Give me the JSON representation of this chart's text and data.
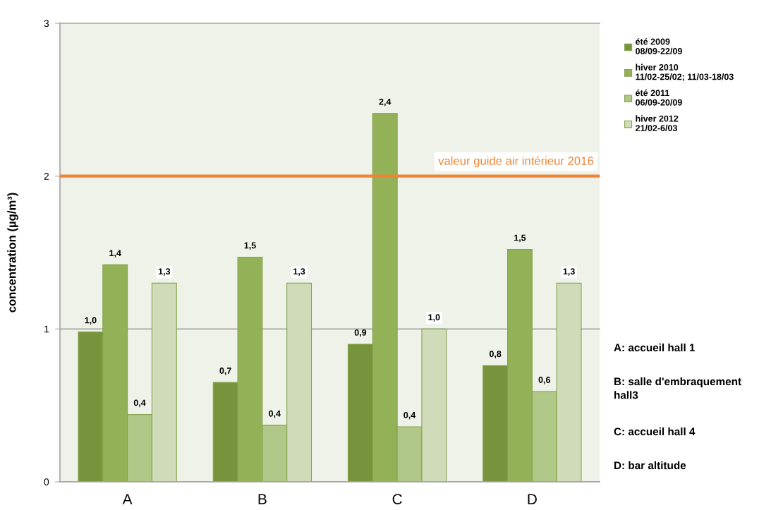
{
  "chart_data": {
    "type": "bar",
    "ylabel": "concentration (µg/m³)",
    "categories": [
      "A",
      "B",
      "C",
      "D"
    ],
    "series": [
      {
        "name": "été 2009\n08/09-22/09",
        "color": "#77933c",
        "values": [
          0.98,
          0.65,
          0.9,
          0.76
        ],
        "value_labels": [
          "1,0",
          "0,7",
          "0,9",
          "0,8"
        ]
      },
      {
        "name": "hiver 2010\n11/02-25/02; 11/03-18/03",
        "color": "#93b157",
        "values": [
          1.42,
          1.47,
          2.41,
          1.52
        ],
        "value_labels": [
          "1,4",
          "1,5",
          "2,4",
          "1,5"
        ]
      },
      {
        "name": "été 2011\n06/09-20/09",
        "color": "#afc887",
        "values": [
          0.44,
          0.37,
          0.36,
          0.59
        ],
        "value_labels": [
          "0,4",
          "0,4",
          "0,4",
          "0,6"
        ]
      },
      {
        "name": "hiver 2012\n21/02-6/03",
        "color": "#d0dcb9",
        "values": [
          1.3,
          1.3,
          1.0,
          1.3
        ],
        "value_labels": [
          "1,3",
          "1,3",
          "1,0",
          "1,3"
        ]
      }
    ],
    "ylim": [
      0,
      3
    ],
    "yticks": [
      0,
      1,
      2,
      3
    ],
    "grid": "y",
    "legend": "top right",
    "ref_lines": [
      {
        "axis": "y",
        "value": 2,
        "label": "valeur guide air intérieur 2016",
        "color": "#ee8434"
      }
    ],
    "annotations": [
      "A: accueil hall 1",
      "B: salle d'embraquement\nhall3",
      "C: accueil hall 4",
      "D: bar altitude"
    ]
  }
}
